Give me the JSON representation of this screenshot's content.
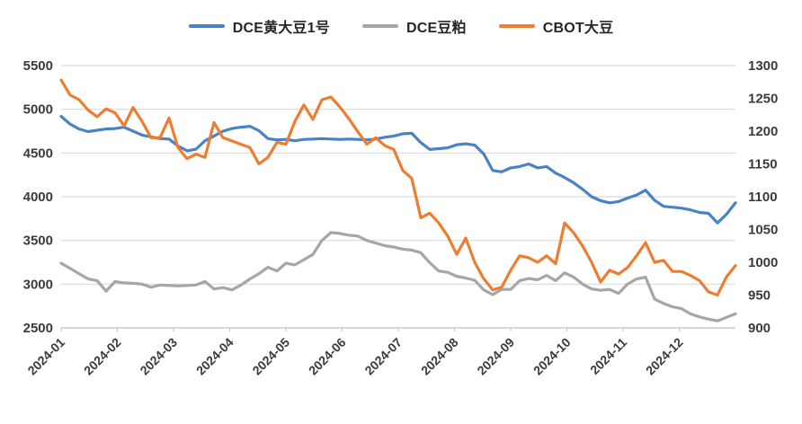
{
  "chart_data": {
    "type": "line",
    "title": "",
    "legend_position": "top",
    "grid": true,
    "background": "#ffffff",
    "grid_color": "#d9d9d9",
    "axis_line_color": "#bfbfbf",
    "axis_text_color": "#3b3b3b",
    "x_axis": {
      "labels": [
        "2024-01",
        "2024-02",
        "2024-03",
        "2024-04",
        "2024-05",
        "2024-06",
        "2024-07",
        "2024-08",
        "2024-09",
        "2024-10",
        "2024-11",
        "2024-12"
      ]
    },
    "left_axis": {
      "min": 2500,
      "max": 5500,
      "step": 500,
      "ticks": [
        5500,
        5000,
        4500,
        4000,
        3500,
        3000,
        2500
      ]
    },
    "right_axis": {
      "min": 900,
      "max": 1300,
      "step": 50,
      "ticks": [
        1300,
        1250,
        1200,
        1150,
        1100,
        1050,
        1000,
        950,
        900
      ]
    },
    "series": [
      {
        "name": "DCE黄大豆1号",
        "axis": "left",
        "color": "#4a82c6",
        "values": [
          4920,
          4830,
          4775,
          4745,
          4760,
          4775,
          4780,
          4795,
          4750,
          4705,
          4685,
          4665,
          4660,
          4580,
          4525,
          4545,
          4640,
          4695,
          4750,
          4780,
          4795,
          4805,
          4755,
          4665,
          4650,
          4655,
          4640,
          4655,
          4660,
          4665,
          4660,
          4655,
          4660,
          4655,
          4650,
          4660,
          4680,
          4695,
          4720,
          4725,
          4620,
          4540,
          4550,
          4560,
          4595,
          4605,
          4590,
          4490,
          4300,
          4285,
          4330,
          4345,
          4375,
          4330,
          4345,
          4270,
          4220,
          4160,
          4085,
          4000,
          3955,
          3930,
          3945,
          3985,
          4020,
          4075,
          3960,
          3890,
          3880,
          3870,
          3850,
          3820,
          3810,
          3700,
          3800,
          3930
        ]
      },
      {
        "name": "DCE豆粕",
        "axis": "left",
        "color": "#a6a6a6",
        "values": [
          3240,
          3180,
          3120,
          3060,
          3040,
          2920,
          3030,
          3015,
          3010,
          3000,
          2965,
          2990,
          2985,
          2980,
          2985,
          2990,
          3030,
          2945,
          2960,
          2935,
          2990,
          3060,
          3120,
          3195,
          3150,
          3240,
          3220,
          3280,
          3340,
          3500,
          3590,
          3580,
          3560,
          3550,
          3500,
          3470,
          3440,
          3425,
          3400,
          3390,
          3360,
          3245,
          3150,
          3135,
          3090,
          3070,
          3045,
          2935,
          2880,
          2940,
          2940,
          3040,
          3065,
          3050,
          3100,
          3040,
          3130,
          3080,
          3000,
          2945,
          2930,
          2940,
          2895,
          3000,
          3060,
          3080,
          2830,
          2780,
          2740,
          2720,
          2660,
          2625,
          2600,
          2580,
          2620,
          2660
        ]
      },
      {
        "name": "CBOT大豆",
        "axis": "right",
        "color": "#ed7d31",
        "values": [
          1278,
          1255,
          1248,
          1232,
          1222,
          1234,
          1228,
          1208,
          1236,
          1215,
          1190,
          1190,
          1220,
          1175,
          1158,
          1165,
          1160,
          1213,
          1190,
          1185,
          1180,
          1175,
          1150,
          1160,
          1183,
          1180,
          1215,
          1240,
          1218,
          1248,
          1252,
          1237,
          1219,
          1199,
          1180,
          1190,
          1178,
          1172,
          1140,
          1128,
          1068,
          1075,
          1060,
          1040,
          1012,
          1037,
          1000,
          975,
          958,
          962,
          988,
          1010,
          1007,
          1000,
          1010,
          998,
          1060,
          1045,
          1025,
          1000,
          970,
          988,
          982,
          992,
          1010,
          1030,
          1000,
          1003,
          986,
          986,
          980,
          972,
          955,
          950,
          978,
          995
        ]
      }
    ]
  }
}
